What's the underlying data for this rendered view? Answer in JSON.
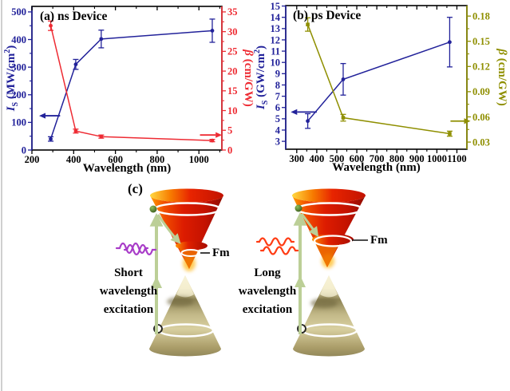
{
  "page": {
    "background": "#ffffff"
  },
  "chart_data": [
    {
      "id": "a",
      "type": "line",
      "title": "(a) ns Device",
      "xlabel": "Wavelength (nm)",
      "xlim": [
        200,
        1110
      ],
      "x_ticks": [
        200,
        400,
        600,
        800,
        1000
      ],
      "x_minor_ticks": [
        300,
        500,
        700,
        900,
        1100
      ],
      "left_axis": {
        "label": "*I*_{S} (MW/cm^{2})",
        "color": "#22229a",
        "lim": [
          0,
          520
        ],
        "ticks": [
          0,
          100,
          200,
          300,
          400,
          500
        ],
        "minor_ticks": [
          50,
          150,
          250,
          350,
          450
        ]
      },
      "right_axis": {
        "label": "*β* (cm/GW)",
        "color": "#ee2b33",
        "lim": [
          0,
          36.4
        ],
        "ticks": [
          0,
          5,
          10,
          15,
          20,
          25,
          30,
          35
        ],
        "minor_ticks": [
          2.5,
          7.5,
          12.5,
          17.5,
          22.5,
          27.5,
          32.5
        ]
      },
      "series": [
        {
          "name": "Is saturation intensity",
          "axis": "left",
          "color": "#22229a",
          "marker": "circle",
          "x": [
            290,
            410,
            532,
            1064
          ],
          "y": [
            40,
            310,
            402,
            432
          ],
          "yerr": [
            8,
            18,
            32,
            42
          ]
        },
        {
          "name": "beta nonlinear absorption",
          "axis": "right",
          "color": "#ee2b33",
          "marker": "circle",
          "x": [
            290,
            410,
            532,
            1064
          ],
          "y": [
            31.5,
            4.8,
            3.4,
            2.4
          ],
          "yerr": [
            1.2,
            0.5,
            0.4,
            0.3
          ]
        }
      ],
      "arrows": [
        {
          "axis": "left",
          "color": "#22229a",
          "x_from": 335,
          "x_to": 265,
          "y": 124
        },
        {
          "axis": "right",
          "color": "#ee2b33",
          "x_from": 1005,
          "x_to": 1080,
          "y": 3.8
        }
      ]
    },
    {
      "id": "b",
      "type": "line",
      "title": "(b) ps Device",
      "xlabel": "Wavelength (nm)",
      "xlim": [
        245,
        1150
      ],
      "x_ticks": [
        300,
        400,
        500,
        600,
        700,
        800,
        900,
        1000,
        1100
      ],
      "x_minor_ticks": [
        350,
        450,
        550,
        650,
        750,
        850,
        950,
        1050
      ],
      "left_axis": {
        "label": "*I*_{S} (GW/cm^{2})",
        "color": "#22229a",
        "lim": [
          2.3,
          15.04
        ],
        "ticks": [
          3,
          4,
          5,
          6,
          7,
          8,
          9,
          10,
          11,
          12,
          13,
          14,
          15
        ],
        "minor_ticks": []
      },
      "right_axis": {
        "label": "*β* (cm/GW)",
        "color": "#8f8f00",
        "lim": [
          0.0215,
          0.1925
        ],
        "ticks": [
          0.03,
          0.06,
          0.09,
          0.12,
          0.15,
          0.18
        ],
        "tick_labels": [
          "0.03",
          "0.06",
          "0.09",
          "0.12",
          "0.15",
          "0.18"
        ],
        "minor_ticks": [
          0.045,
          0.075,
          0.105,
          0.135,
          0.165
        ]
      },
      "series": [
        {
          "name": "Is saturation intensity",
          "axis": "left",
          "color": "#22229a",
          "marker": "circle",
          "x": [
            355,
            532,
            1064
          ],
          "y": [
            4.8,
            8.5,
            11.8
          ],
          "yerr": [
            0.65,
            1.4,
            2.2
          ]
        },
        {
          "name": "beta nonlinear absorption",
          "axis": "right",
          "color": "#8f8f00",
          "marker": "square",
          "x": [
            355,
            532,
            1064
          ],
          "y": [
            0.17,
            0.059,
            0.04
          ],
          "yerr": [
            0.008,
            0.004,
            0.003
          ]
        }
      ],
      "arrows": [
        {
          "axis": "left",
          "color": "#22229a",
          "x_from": 400,
          "x_to": 302,
          "y": 5.6
        },
        {
          "axis": "right",
          "color": "#8f8f00",
          "x_from": 1068,
          "x_to": 1136,
          "y": 0.055
        }
      ]
    }
  ],
  "panel_c": {
    "label": "(c)",
    "left": {
      "photon_icon": "purple-double-wave-photon",
      "lines": [
        "Short",
        "wavelength",
        "excitation"
      ],
      "fm_label": "Fm"
    },
    "right": {
      "photon_icon": "red-double-wave-photon",
      "lines": [
        "Long",
        "wavelength",
        "excitation"
      ],
      "fm_label": "Fm"
    },
    "colors": {
      "photon_short": "#a83cc8",
      "photon_long": "#ff3c14",
      "excitation_arrow": "#bccf97",
      "upper_cone": [
        "#ffd840",
        "#e82400",
        "#8e0c00"
      ],
      "lower_cone": [
        "#f5efd0",
        "#8d8355",
        "#93885a"
      ],
      "electron": "#2c4a12"
    }
  }
}
